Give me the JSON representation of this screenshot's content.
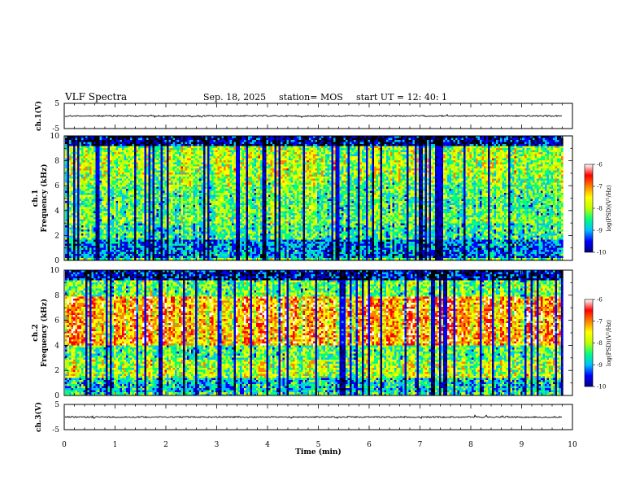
{
  "header": {
    "title": "VLF Spectra",
    "date": "Sep. 18, 2025",
    "station": "station= MOS",
    "start": "start  UT  =    12: 40: 1"
  },
  "chart_data": [
    {
      "type": "line",
      "name": "ch1-waveform",
      "ylabel": "ch.1(V)",
      "ylim": [
        -5,
        5
      ],
      "y_ticks": [
        "5",
        "-5"
      ],
      "xlim": [
        0,
        10
      ],
      "data_end_min": 9.8,
      "baseline_v": 0
    },
    {
      "type": "heatmap",
      "name": "ch1-spectrogram",
      "ylabel_line1": "ch.1",
      "ylabel_line2": "Frequency (kHz)",
      "ylim": [
        0,
        10
      ],
      "y_ticks": [
        "0",
        "2",
        "4",
        "6",
        "8",
        "10"
      ],
      "xlim": [
        0,
        10
      ],
      "data_end_min": 9.8,
      "colorbar": {
        "label": "log(PSD)(V²/Hz)",
        "range": [
          -10,
          -6
        ],
        "ticks": [
          "-6",
          "-7",
          "-8",
          "-9",
          "-10"
        ],
        "colors": [
          "#000080",
          "#0000ff",
          "#00c0ff",
          "#00ff80",
          "#c0ff00",
          "#ffff00",
          "#ff8000",
          "#ff0000",
          "#ffffff"
        ]
      }
    },
    {
      "type": "heatmap",
      "name": "ch2-spectrogram",
      "ylabel_line1": "ch.2",
      "ylabel_line2": "Frequency (kHz)",
      "ylim": [
        0,
        10
      ],
      "y_ticks": [
        "0",
        "2",
        "4",
        "6",
        "8",
        "10"
      ],
      "xlim": [
        0,
        10
      ],
      "data_end_min": 9.8,
      "colorbar": {
        "label": "log(PSD)(V²/Hz)",
        "range": [
          -10,
          -6
        ],
        "ticks": [
          "-6",
          "-7",
          "-8",
          "-9",
          "-10"
        ],
        "colors": [
          "#000080",
          "#0000ff",
          "#00c0ff",
          "#00ff80",
          "#c0ff00",
          "#ffff00",
          "#ff8000",
          "#ff0000",
          "#ffffff"
        ]
      }
    },
    {
      "type": "line",
      "name": "ch3-waveform",
      "ylabel": "ch.3(V)",
      "ylim": [
        -5,
        5
      ],
      "y_ticks": [
        "5",
        "-5"
      ],
      "xlim": [
        0,
        10
      ],
      "data_end_min": 9.8,
      "baseline_v": 0
    }
  ],
  "x_axis": {
    "label": "Time  (min)",
    "ticks": [
      "0",
      "1",
      "2",
      "3",
      "4",
      "5",
      "6",
      "7",
      "8",
      "9",
      "10"
    ]
  }
}
